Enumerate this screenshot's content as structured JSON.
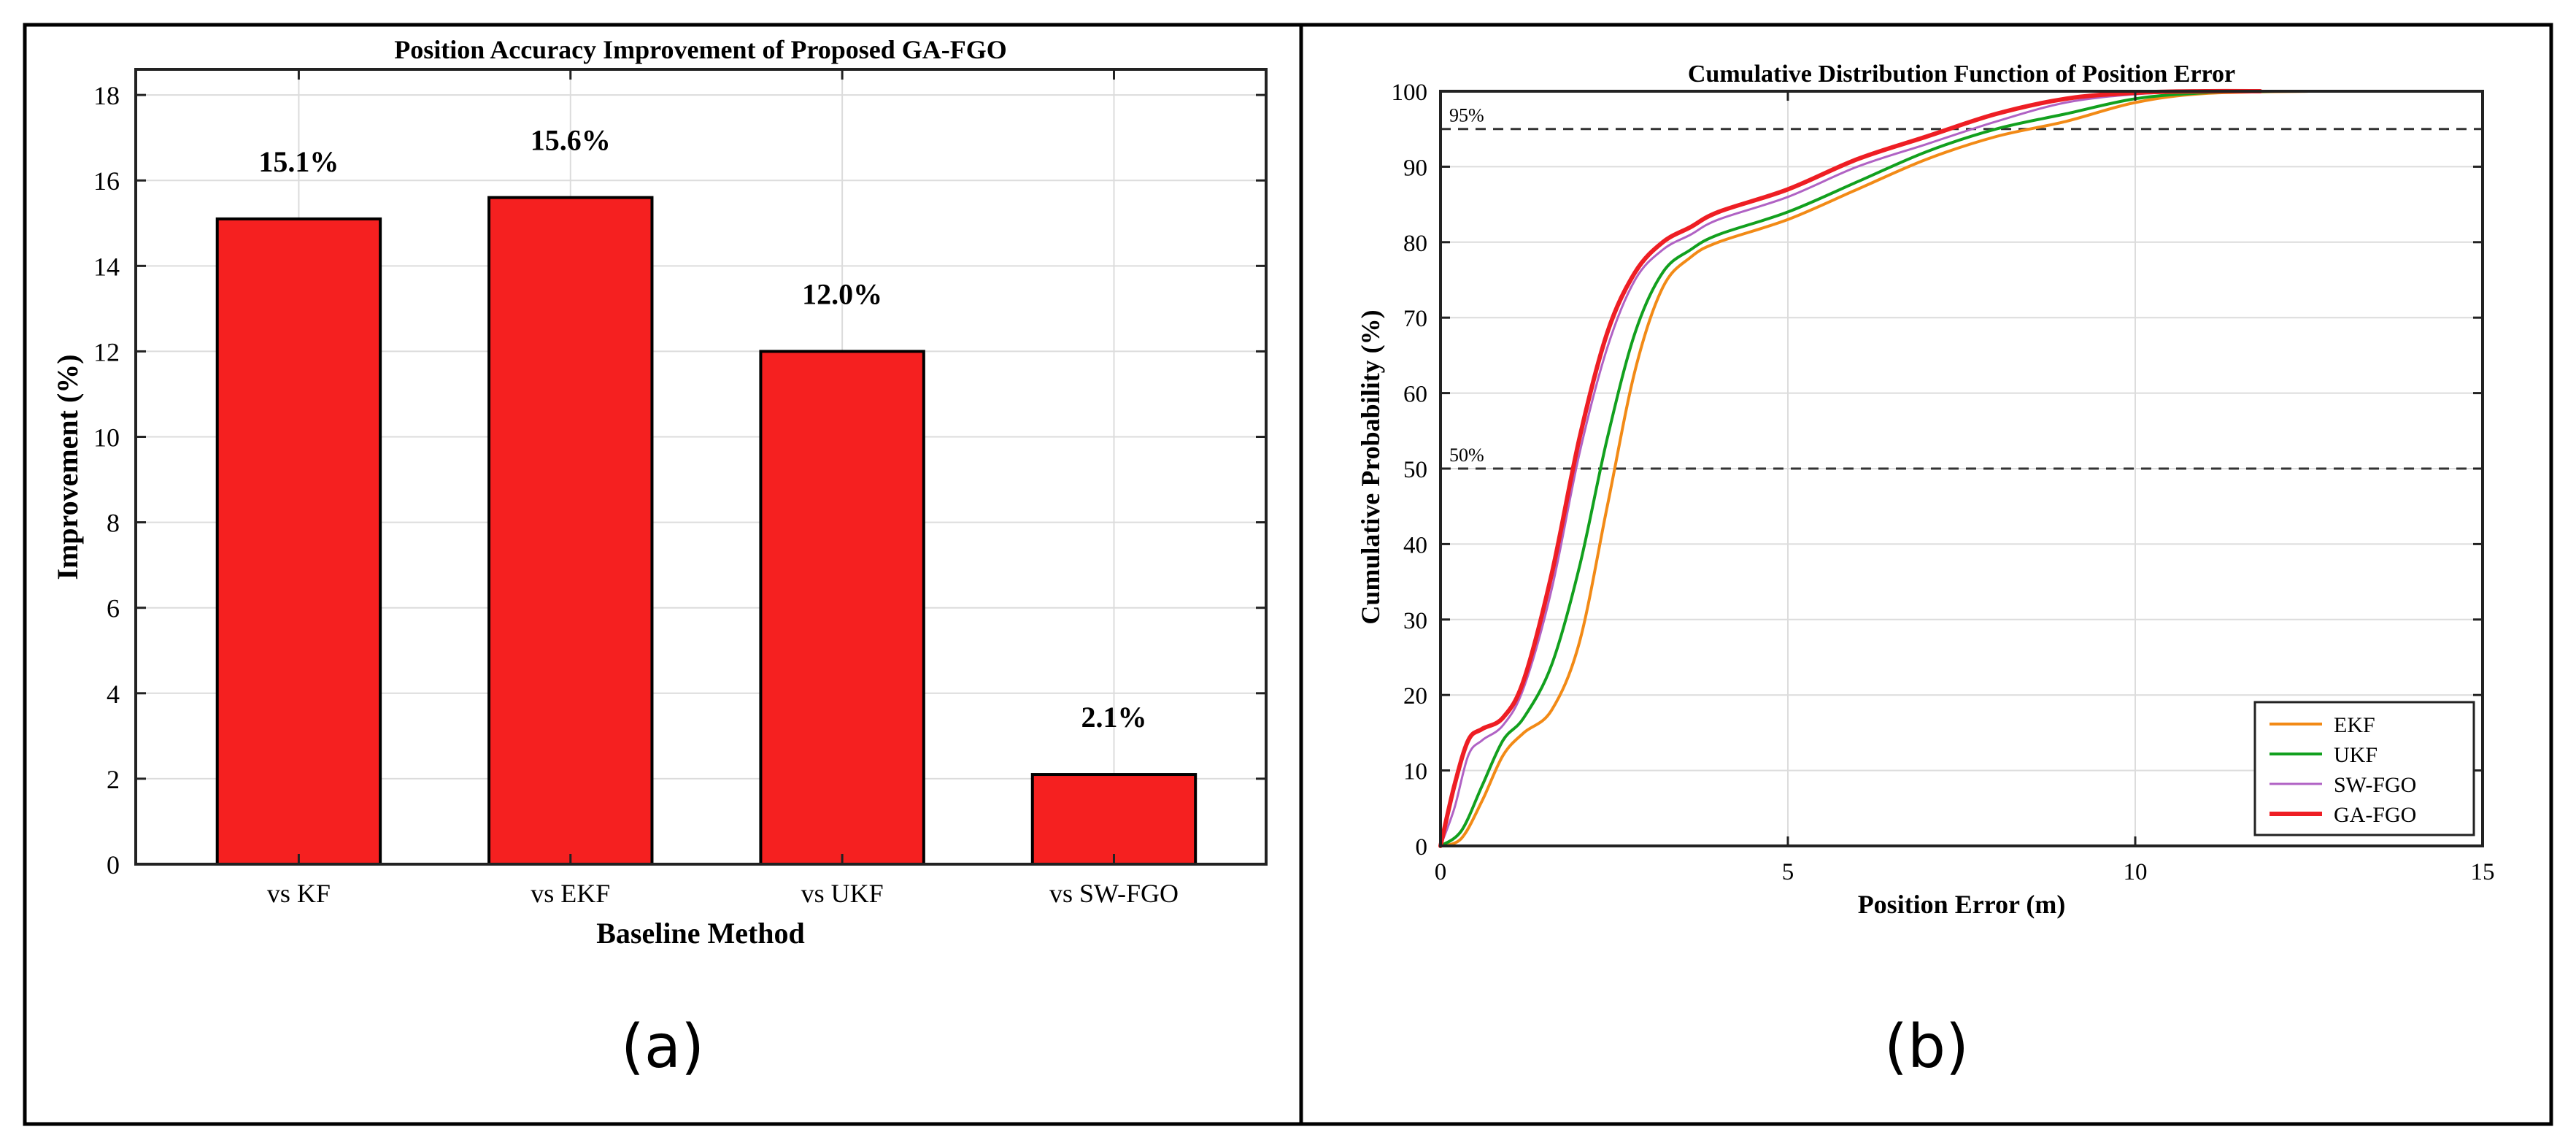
{
  "panels": {
    "a": {
      "label": "(a)",
      "chart_data": {
        "type": "bar",
        "title": "Position Accuracy Improvement of Proposed GA-FGO",
        "xlabel": "Baseline Method",
        "ylabel": "Improvement (%)",
        "categories": [
          "vs KF",
          "vs EKF",
          "vs UKF",
          "vs SW-FGO"
        ],
        "values": [
          15.1,
          15.6,
          12.0,
          2.1
        ],
        "data_labels": [
          "15.1%",
          "15.6%",
          "12.0%",
          "2.1%"
        ],
        "ylim": [
          0,
          18.6
        ],
        "yticks": [
          "0",
          "2",
          "4",
          "6",
          "8",
          "10",
          "12",
          "14",
          "16",
          "18"
        ],
        "grid": true,
        "bar_color": "#f52020"
      }
    },
    "b": {
      "label": "(b)",
      "chart_data": {
        "type": "line",
        "title": "Cumulative Distribution Function of Position Error",
        "xlabel": "Position Error (m)",
        "ylabel": "Cumulative Probability (%)",
        "xlim": [
          0,
          15
        ],
        "ylim": [
          0,
          100
        ],
        "xticks": [
          "0",
          "5",
          "10",
          "15"
        ],
        "yticks": [
          "0",
          "10",
          "20",
          "30",
          "40",
          "50",
          "60",
          "70",
          "80",
          "90",
          "100"
        ],
        "grid": true,
        "legend_position": "bottom-right",
        "reference_lines": [
          {
            "y": 95,
            "label": "95%"
          },
          {
            "y": 50,
            "label": "50%"
          }
        ],
        "series": [
          {
            "name": "EKF",
            "color": "#f28a16",
            "x": [
              0,
              0.3,
              0.6,
              0.9,
              1.2,
              1.6,
              2.0,
              2.4,
              2.8,
              3.2,
              3.6,
              4.0,
              5.0,
              6.0,
              7.0,
              8.0,
              9.0,
              10.0,
              11.0,
              12.5
            ],
            "y": [
              0,
              1,
              6,
              12,
              15,
              18,
              27,
              45,
              63,
              74,
              78,
              80,
              83,
              87,
              91,
              94,
              96,
              98.5,
              99.7,
              100
            ]
          },
          {
            "name": "UKF",
            "color": "#12a01e",
            "x": [
              0,
              0.3,
              0.6,
              0.9,
              1.2,
              1.6,
              2.0,
              2.4,
              2.8,
              3.2,
              3.6,
              4.0,
              5.0,
              6.0,
              7.0,
              8.0,
              9.0,
              10.0,
              11.0,
              12.0
            ],
            "y": [
              0,
              2,
              8,
              14,
              17,
              24,
              37,
              54,
              68,
              76,
              79,
              81,
              84,
              88,
              92,
              95,
              97,
              99,
              99.8,
              100
            ]
          },
          {
            "name": "SW-FGO",
            "color": "#b062c4",
            "x": [
              0,
              0.2,
              0.4,
              0.6,
              0.9,
              1.2,
              1.6,
              2.0,
              2.4,
              2.8,
              3.2,
              3.6,
              4.0,
              5.0,
              6.0,
              7.0,
              8.0,
              9.0,
              10.0,
              11.0
            ],
            "y": [
              0,
              5,
              12,
              14,
              16,
              21,
              34,
              52,
              66,
              75,
              79,
              81,
              83,
              86,
              90,
              93,
              96,
              98.5,
              99.6,
              100
            ]
          },
          {
            "name": "GA-FGO",
            "color": "#ee1e24",
            "x": [
              0,
              0.2,
              0.4,
              0.6,
              0.9,
              1.2,
              1.6,
              2.0,
              2.4,
              2.8,
              3.2,
              3.6,
              4.0,
              5.0,
              6.0,
              7.0,
              8.0,
              9.0,
              10.0,
              11.0,
              11.8
            ],
            "y": [
              0,
              8,
              14,
              15.5,
              17,
              22,
              36,
              54,
              68,
              76,
              80,
              82,
              84,
              87,
              91,
              94,
              97,
              99,
              99.8,
              100,
              100
            ]
          }
        ]
      }
    }
  }
}
